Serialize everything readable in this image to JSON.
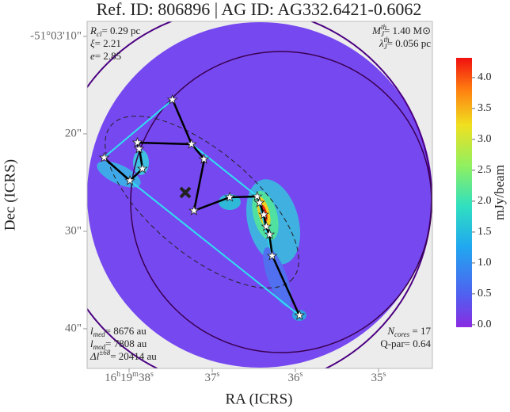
{
  "chart_data": {
    "type": "image",
    "title": "Ref. ID: 806896 | AG ID: AG332.6421-0.6062",
    "xlabel": "RA (ICRS)",
    "ylabel": "Dec (ICRS)",
    "xlim": [
      38.505,
      34.352
    ],
    "xticks": [
      {
        "value": 38,
        "label": "16h19m38s"
      },
      {
        "value": 37,
        "label": "37s"
      },
      {
        "value": 36,
        "label": "36s"
      },
      {
        "value": 35,
        "label": "35s"
      }
    ],
    "ylim": [
      8.46,
      44.07
    ],
    "yticks": [
      {
        "value": 10,
        "label": "-51°03'10\""
      },
      {
        "value": 20,
        "label": "20\""
      },
      {
        "value": 30,
        "label": "30\""
      },
      {
        "value": 40,
        "label": "40\""
      }
    ],
    "colorbar": {
      "label": "mJy/beam",
      "lim": [
        -0.04,
        4.32
      ],
      "ticks": [
        {
          "value": 0,
          "label": "0.0"
        },
        {
          "value": 0.5,
          "label": "0.5"
        },
        {
          "value": 1,
          "label": "1.0"
        },
        {
          "value": 1.5,
          "label": "1.5"
        },
        {
          "value": 2,
          "label": "2.0"
        },
        {
          "value": 2.5,
          "label": "2.5"
        },
        {
          "value": 3,
          "label": "3.0"
        },
        {
          "value": 3.5,
          "label": "3.5"
        },
        {
          "value": 4,
          "label": "4.0"
        }
      ]
    },
    "cores": {
      "color": "#ffffff",
      "x": [
        37.48,
        37.9,
        37.88,
        37.84,
        38.3,
        37.99,
        37.25,
        37.1,
        37.22,
        36.79,
        36.46,
        36.43,
        36.38,
        36.31,
        36.28,
        35.95,
        36.35
      ],
      "y": [
        16.5,
        20.89,
        21.54,
        23.58,
        22.44,
        24.8,
        21.06,
        22.6,
        27.89,
        26.5,
        26.42,
        27.07,
        28.29,
        30.33,
        32.52,
        38.62,
        29.51
      ]
    },
    "annotations": {
      "top_left": [
        {
          "text": "R",
          "sub": "cl",
          "after": "= 0.29 pc"
        },
        {
          "text": "ξ",
          "after": "= 2.21"
        },
        {
          "text": "e",
          "after": "= 2.85"
        }
      ],
      "top_right": [
        {
          "text": "M",
          "sub": "J",
          "sup": "th",
          "after": "= 1.40 M⊙"
        },
        {
          "text": "λ",
          "sub": "J",
          "sup": "th",
          "after": "= 0.056 pc"
        }
      ],
      "bottom_left": [
        {
          "text": "l",
          "sub": "med",
          "after": "= 8676 au"
        },
        {
          "text": "l",
          "sub": "mod",
          "after": "= 7808 au"
        },
        {
          "text": "Δl",
          "sup": "±68",
          "after": "= 20414 au"
        }
      ],
      "bottom_right": [
        {
          "text": "N",
          "sub": "cores",
          "after": " = 17"
        },
        {
          "text": "Q-par= 0.64"
        }
      ]
    }
  }
}
